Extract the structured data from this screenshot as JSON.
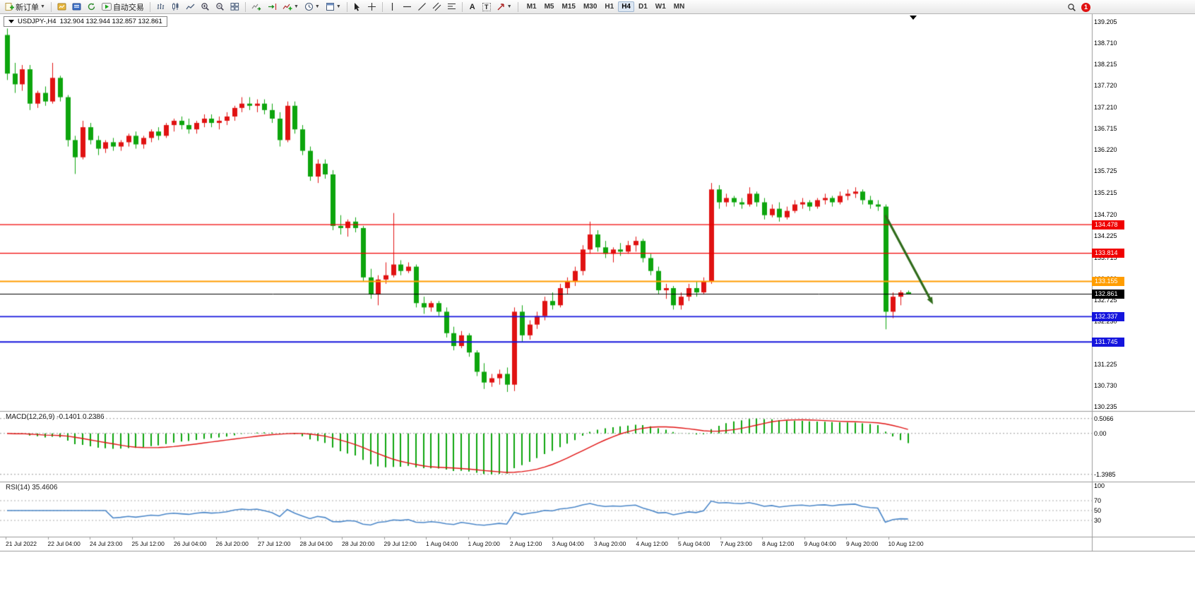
{
  "toolbar": {
    "new_order_label": "新订单",
    "auto_trading_label": "自动交易",
    "text_tool_label": "A",
    "text_label_tool_label": "T",
    "timeframes": [
      "M1",
      "M5",
      "M15",
      "M30",
      "H1",
      "H4",
      "D1",
      "W1",
      "MN"
    ],
    "active_timeframe": "H4",
    "notification_count": "1"
  },
  "chart": {
    "symbol_title": "USDJPY-,H4",
    "ohlc": "132.904 132.944 132.857 132.861",
    "price_labels": [
      "139.205",
      "138.710",
      "138.215",
      "137.720",
      "137.210",
      "136.715",
      "136.220",
      "135.725",
      "135.215",
      "134.720",
      "134.225",
      "133.715",
      "133.220",
      "132.725",
      "132.230",
      "131.735",
      "131.225",
      "130.730",
      "130.235"
    ],
    "time_labels": [
      "21 Jul 2022",
      "22 Jul 04:00",
      "24 Jul 23:00",
      "25 Jul 12:00",
      "26 Jul 04:00",
      "26 Jul 20:00",
      "27 Jul 12:00",
      "28 Jul 04:00",
      "28 Jul 20:00",
      "29 Jul 12:00",
      "1 Aug 04:00",
      "1 Aug 20:00",
      "2 Aug 12:00",
      "3 Aug 04:00",
      "3 Aug 20:00",
      "4 Aug 12:00",
      "5 Aug 04:00",
      "7 Aug 23:00",
      "8 Aug 12:00",
      "9 Aug 04:00",
      "9 Aug 20:00",
      "10 Aug 12:00"
    ],
    "hlines": [
      {
        "value": 134.478,
        "label": "134.478",
        "color": "#f00000",
        "width": 1.2
      },
      {
        "value": 133.814,
        "label": "133.814",
        "color": "#f00000",
        "width": 1.2
      },
      {
        "value": 133.155,
        "label": "133.155",
        "color": "#ff9d00",
        "width": 2
      },
      {
        "value": 132.337,
        "label": "132.337",
        "color": "#1515dd",
        "width": 1.8
      },
      {
        "value": 131.745,
        "label": "131.745",
        "color": "#1515dd",
        "width": 1.8
      }
    ],
    "current_price": {
      "value": 132.861,
      "label": "132.861",
      "color": "#000000"
    },
    "arrow": {
      "from_index": 116,
      "from_price": 134.7,
      "to_index": 122.3,
      "to_price": 132.62,
      "color": "#2f6b1a"
    },
    "colors": {
      "bull": "#e01212",
      "bear": "#0da50d",
      "macd_hist": "#0da50d",
      "macd_signal": "#e01212",
      "rsi": "#4a86c8"
    },
    "candles": [
      [
        138.9,
        139.05,
        137.85,
        138.0
      ],
      [
        138.0,
        138.25,
        137.55,
        137.75
      ],
      [
        137.75,
        138.2,
        137.6,
        138.1
      ],
      [
        138.1,
        138.2,
        137.15,
        137.3
      ],
      [
        137.3,
        137.6,
        137.2,
        137.55
      ],
      [
        137.55,
        137.7,
        137.25,
        137.35
      ],
      [
        137.35,
        138.25,
        137.3,
        137.9
      ],
      [
        137.9,
        137.95,
        137.35,
        137.45
      ],
      [
        137.45,
        137.5,
        136.3,
        136.45
      ],
      [
        136.45,
        136.55,
        135.66,
        136.05
      ],
      [
        136.05,
        136.9,
        136.0,
        136.75
      ],
      [
        136.75,
        136.85,
        136.35,
        136.45
      ],
      [
        136.45,
        136.55,
        136.1,
        136.25
      ],
      [
        136.25,
        136.45,
        136.15,
        136.4
      ],
      [
        136.4,
        136.5,
        136.2,
        136.3
      ],
      [
        136.3,
        136.45,
        136.2,
        136.4
      ],
      [
        136.4,
        136.6,
        136.3,
        136.55
      ],
      [
        136.55,
        136.65,
        136.25,
        136.35
      ],
      [
        136.35,
        136.55,
        136.25,
        136.5
      ],
      [
        136.5,
        136.7,
        136.4,
        136.65
      ],
      [
        136.65,
        136.75,
        136.45,
        136.55
      ],
      [
        136.55,
        136.85,
        136.5,
        136.8
      ],
      [
        136.8,
        136.95,
        136.65,
        136.9
      ],
      [
        136.9,
        137.0,
        136.7,
        136.8
      ],
      [
        136.8,
        136.95,
        136.6,
        136.7
      ],
      [
        136.7,
        136.9,
        136.6,
        136.85
      ],
      [
        136.85,
        137.05,
        136.75,
        136.95
      ],
      [
        136.95,
        137.05,
        136.75,
        136.85
      ],
      [
        136.85,
        137.0,
        136.7,
        136.9
      ],
      [
        136.9,
        137.1,
        136.8,
        137.0
      ],
      [
        137.0,
        137.25,
        136.9,
        137.2
      ],
      [
        137.2,
        137.45,
        137.1,
        137.3
      ],
      [
        137.3,
        137.45,
        137.15,
        137.25
      ],
      [
        137.25,
        137.4,
        137.1,
        137.3
      ],
      [
        137.3,
        137.4,
        137.05,
        137.15
      ],
      [
        137.15,
        137.3,
        136.85,
        136.95
      ],
      [
        136.95,
        137.1,
        136.3,
        136.45
      ],
      [
        136.45,
        137.35,
        136.4,
        137.25
      ],
      [
        137.25,
        137.35,
        136.6,
        136.7
      ],
      [
        136.7,
        136.8,
        136.1,
        136.2
      ],
      [
        136.2,
        136.3,
        135.5,
        135.6
      ],
      [
        135.6,
        136.0,
        135.45,
        135.9
      ],
      [
        135.9,
        136.0,
        135.55,
        135.65
      ],
      [
        135.65,
        135.75,
        134.35,
        134.45
      ],
      [
        134.45,
        134.7,
        134.25,
        134.4
      ],
      [
        134.4,
        134.6,
        134.2,
        134.55
      ],
      [
        134.55,
        134.65,
        134.3,
        134.4
      ],
      [
        134.4,
        134.45,
        133.15,
        133.25
      ],
      [
        133.25,
        133.45,
        132.75,
        132.85
      ],
      [
        132.85,
        133.3,
        132.6,
        133.2
      ],
      [
        133.2,
        133.6,
        133.1,
        133.3
      ],
      [
        133.3,
        134.75,
        133.25,
        133.55
      ],
      [
        133.55,
        133.65,
        133.3,
        133.4
      ],
      [
        133.4,
        133.6,
        133.35,
        133.5
      ],
      [
        133.5,
        133.55,
        132.55,
        132.65
      ],
      [
        132.65,
        132.8,
        132.4,
        132.55
      ],
      [
        132.55,
        132.7,
        132.45,
        132.65
      ],
      [
        132.65,
        132.7,
        132.35,
        132.45
      ],
      [
        132.45,
        132.55,
        131.85,
        131.95
      ],
      [
        131.95,
        132.1,
        131.55,
        131.65
      ],
      [
        131.65,
        132.0,
        131.6,
        131.9
      ],
      [
        131.9,
        131.95,
        131.4,
        131.5
      ],
      [
        131.5,
        131.55,
        130.95,
        131.05
      ],
      [
        131.05,
        131.25,
        130.65,
        130.8
      ],
      [
        130.8,
        131.0,
        130.7,
        130.9
      ],
      [
        130.9,
        131.1,
        130.75,
        131.0
      ],
      [
        131.0,
        131.15,
        130.58,
        130.75
      ],
      [
        130.75,
        132.55,
        130.6,
        132.45
      ],
      [
        132.45,
        132.6,
        131.75,
        131.9
      ],
      [
        131.9,
        132.25,
        131.8,
        132.15
      ],
      [
        132.15,
        132.45,
        132.05,
        132.35
      ],
      [
        132.35,
        132.8,
        132.25,
        132.7
      ],
      [
        132.7,
        132.9,
        132.5,
        132.6
      ],
      [
        132.6,
        133.1,
        132.55,
        133.0
      ],
      [
        133.0,
        133.25,
        132.85,
        133.15
      ],
      [
        133.15,
        133.5,
        133.05,
        133.4
      ],
      [
        133.4,
        134.0,
        133.3,
        133.9
      ],
      [
        133.9,
        134.55,
        133.8,
        134.25
      ],
      [
        134.25,
        134.35,
        133.85,
        133.95
      ],
      [
        133.95,
        134.1,
        133.7,
        133.8
      ],
      [
        133.8,
        133.95,
        133.6,
        133.9
      ],
      [
        133.9,
        134.05,
        133.75,
        133.85
      ],
      [
        133.85,
        134.1,
        133.8,
        134.0
      ],
      [
        134.0,
        134.2,
        133.85,
        134.1
      ],
      [
        134.1,
        134.15,
        133.6,
        133.7
      ],
      [
        133.7,
        133.8,
        133.3,
        133.4
      ],
      [
        133.4,
        133.5,
        132.85,
        132.95
      ],
      [
        132.95,
        133.1,
        132.75,
        133.0
      ],
      [
        133.0,
        133.05,
        132.5,
        132.6
      ],
      [
        132.6,
        132.9,
        132.5,
        132.8
      ],
      [
        132.8,
        133.1,
        132.7,
        133.0
      ],
      [
        133.0,
        133.15,
        132.8,
        132.9
      ],
      [
        132.9,
        133.25,
        132.85,
        133.15
      ],
      [
        133.15,
        135.45,
        133.1,
        135.3
      ],
      [
        135.3,
        135.4,
        134.85,
        135.0
      ],
      [
        135.0,
        135.2,
        134.9,
        135.1
      ],
      [
        135.1,
        135.15,
        134.9,
        135.0
      ],
      [
        135.0,
        135.1,
        134.85,
        134.95
      ],
      [
        134.95,
        135.35,
        134.9,
        135.2
      ],
      [
        135.2,
        135.25,
        134.9,
        135.0
      ],
      [
        135.0,
        135.1,
        134.6,
        134.7
      ],
      [
        134.7,
        134.95,
        134.65,
        134.85
      ],
      [
        134.85,
        135.0,
        134.55,
        134.65
      ],
      [
        134.65,
        134.9,
        134.6,
        134.8
      ],
      [
        134.8,
        135.05,
        134.75,
        134.95
      ],
      [
        134.95,
        135.1,
        134.85,
        135.0
      ],
      [
        135.0,
        135.05,
        134.8,
        134.9
      ],
      [
        134.9,
        135.1,
        134.85,
        135.05
      ],
      [
        135.05,
        135.2,
        134.95,
        135.1
      ],
      [
        135.1,
        135.15,
        134.9,
        135.0
      ],
      [
        135.0,
        135.25,
        134.95,
        135.15
      ],
      [
        135.15,
        135.3,
        135.05,
        135.2
      ],
      [
        135.2,
        135.35,
        135.1,
        135.25
      ],
      [
        135.25,
        135.3,
        134.95,
        135.05
      ],
      [
        135.05,
        135.15,
        134.85,
        134.95
      ],
      [
        134.95,
        135.05,
        134.8,
        134.9
      ],
      [
        134.9,
        134.95,
        132.04,
        132.45
      ],
      [
        132.45,
        132.9,
        132.3,
        132.8
      ],
      [
        132.8,
        132.95,
        132.6,
        132.9
      ],
      [
        132.904,
        132.944,
        132.857,
        132.861
      ]
    ]
  },
  "macd": {
    "name": "MACD(12,26,9)",
    "values": "-0.1401 0.2386",
    "axis": [
      {
        "label": "0.5066",
        "value": 0.5066
      },
      {
        "label": "0.00",
        "value": 0
      },
      {
        "label": "-1.3985",
        "value": -1.3985
      }
    ]
  },
  "rsi": {
    "name": "RSI(14)",
    "value": "35.4606",
    "levels": [
      70,
      50,
      30
    ],
    "axis": [
      {
        "label": "100",
        "value": 100
      },
      {
        "label": "70",
        "value": 70
      },
      {
        "label": "50",
        "value": 50
      },
      {
        "label": "30",
        "value": 30
      }
    ]
  }
}
